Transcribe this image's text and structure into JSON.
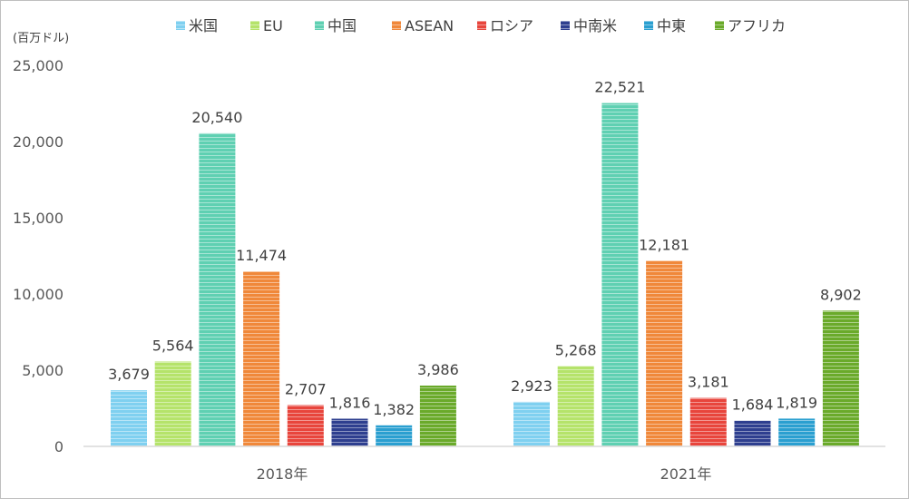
{
  "chart_data": {
    "type": "bar",
    "title": "",
    "ylabel": "(百万ドル)",
    "xlabel": "",
    "categories": [
      "2018年",
      "2021年"
    ],
    "ylim": [
      0,
      25000
    ],
    "yticks": [
      0,
      5000,
      10000,
      15000,
      20000,
      25000
    ],
    "ytick_labels": [
      "0",
      "5,000",
      "10,000",
      "15,000",
      "20,000",
      "25,000"
    ],
    "grid": false,
    "legend_position": "top",
    "series": [
      {
        "name": "米国",
        "values": [
          3679,
          2923
        ],
        "labels": [
          "3,679",
          "2,923"
        ],
        "color": "#7fd0f0"
      },
      {
        "name": "EU",
        "values": [
          5564,
          5268
        ],
        "labels": [
          "5,564",
          "5,268"
        ],
        "color": "#b5e36a"
      },
      {
        "name": "中国",
        "values": [
          20540,
          22521
        ],
        "labels": [
          "20,540",
          "22,521"
        ],
        "color": "#5fd0b2"
      },
      {
        "name": "ASEAN",
        "values": [
          11474,
          12181
        ],
        "labels": [
          "11,474",
          "12,181"
        ],
        "color": "#f0883a"
      },
      {
        "name": "ロシア",
        "values": [
          2707,
          3181
        ],
        "labels": [
          "2,707",
          "3,181"
        ],
        "color": "#e8453c"
      },
      {
        "name": "中南米",
        "values": [
          1816,
          1684
        ],
        "labels": [
          "1,816",
          "1,684"
        ],
        "color": "#2e3f8f"
      },
      {
        "name": "中東",
        "values": [
          1382,
          1819
        ],
        "labels": [
          "1,382",
          "1,819"
        ],
        "color": "#2a9fd0"
      },
      {
        "name": "アフリカ",
        "values": [
          3986,
          8902
        ],
        "labels": [
          "3,986",
          "8,902"
        ],
        "color": "#6aaa2a"
      }
    ]
  }
}
